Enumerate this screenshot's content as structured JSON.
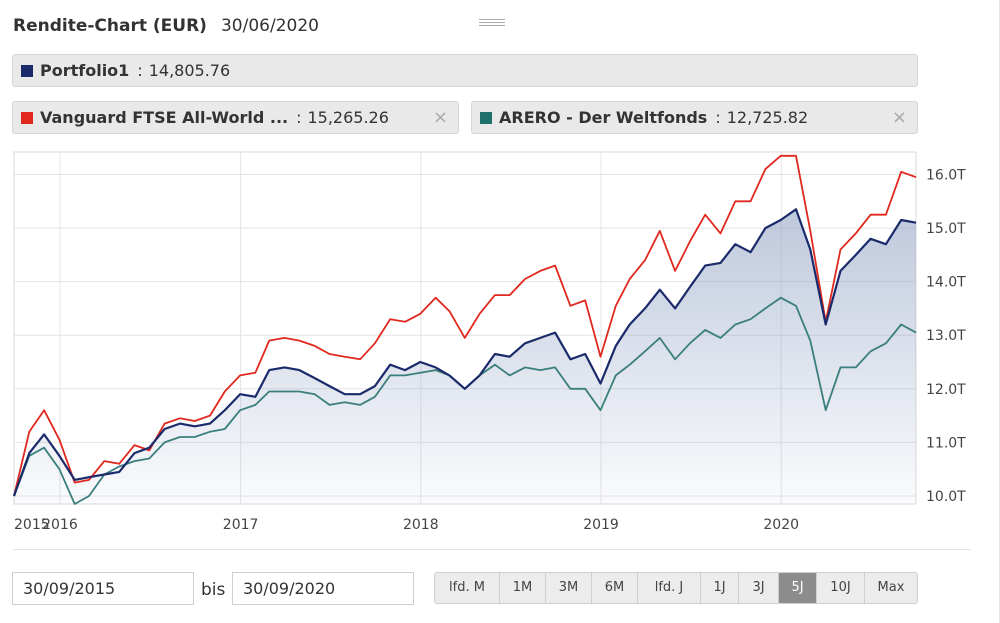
{
  "header": {
    "title": "Rendite-Chart (EUR)",
    "date": "30/06/2020"
  },
  "legend": [
    {
      "name": "Portfolio1",
      "value": "14,805.76",
      "color": "#1a2a6a",
      "closable": false
    },
    {
      "name": "Vanguard FTSE All-World ...",
      "value": "15,265.26",
      "color": "#e0281e",
      "closable": true,
      "close_label": "×"
    },
    {
      "name": "ARERO - Der Weltfonds",
      "value": "12,725.82",
      "color": "#1f6f6c",
      "closable": true,
      "close_label": "×"
    }
  ],
  "chart_data": {
    "type": "line",
    "x_ticks": [
      "2015",
      "2016",
      "2017",
      "2018",
      "2019",
      "2020"
    ],
    "x_tick_dates": [
      "2015-09-30",
      "2016-01-01",
      "2017-01-01",
      "2018-01-01",
      "2019-01-01",
      "2020-01-01"
    ],
    "y_ticks": [
      "10.0T",
      "11.0T",
      "12.0T",
      "13.0T",
      "14.0T",
      "15.0T",
      "16.0T"
    ],
    "y_tick_values": [
      10000,
      11000,
      12000,
      13000,
      14000,
      15000,
      16000
    ],
    "ylim": [
      9850,
      16420
    ],
    "xlim": [
      "2015-09-30",
      "2020-09-30"
    ],
    "grid": true,
    "dates": [
      "2015-09-30",
      "2015-10-31",
      "2015-11-30",
      "2015-12-31",
      "2016-01-31",
      "2016-02-29",
      "2016-03-31",
      "2016-04-30",
      "2016-05-31",
      "2016-06-30",
      "2016-07-31",
      "2016-08-31",
      "2016-09-30",
      "2016-10-31",
      "2016-11-30",
      "2016-12-31",
      "2017-01-31",
      "2017-02-28",
      "2017-03-31",
      "2017-04-30",
      "2017-05-31",
      "2017-06-30",
      "2017-07-31",
      "2017-08-31",
      "2017-09-30",
      "2017-10-31",
      "2017-11-30",
      "2017-12-31",
      "2018-01-31",
      "2018-02-28",
      "2018-03-31",
      "2018-04-30",
      "2018-05-31",
      "2018-06-30",
      "2018-07-31",
      "2018-08-31",
      "2018-09-30",
      "2018-10-31",
      "2018-11-30",
      "2018-12-31",
      "2019-01-31",
      "2019-02-28",
      "2019-03-31",
      "2019-04-30",
      "2019-05-31",
      "2019-06-30",
      "2019-07-31",
      "2019-08-31",
      "2019-09-30",
      "2019-10-31",
      "2019-11-30",
      "2019-12-31",
      "2020-01-31",
      "2020-02-29",
      "2020-03-31",
      "2020-04-30",
      "2020-05-31",
      "2020-06-30",
      "2020-07-31",
      "2020-08-31",
      "2020-09-30"
    ],
    "series": [
      {
        "name": "Vanguard FTSE All-World ...",
        "color": "#e0281e",
        "area": false,
        "values": [
          10000,
          11200,
          11600,
          11050,
          10250,
          10300,
          10650,
          10600,
          10950,
          10850,
          11350,
          11450,
          11400,
          11500,
          11950,
          12250,
          12300,
          12900,
          12950,
          12900,
          12800,
          12650,
          12600,
          12550,
          12850,
          13300,
          13250,
          13400,
          13700,
          13450,
          12950,
          13400,
          13750,
          13750,
          14050,
          14200,
          14300,
          13550,
          13650,
          12600,
          13550,
          14050,
          14400,
          14950,
          14200,
          14750,
          15250,
          14900,
          15500,
          15500,
          16100,
          16350,
          16350,
          14950,
          13250,
          14600,
          14900,
          15250,
          15250,
          16050,
          15950
        ]
      },
      {
        "name": "ARERO - Der Weltfonds",
        "color": "#3a7f7c",
        "area": false,
        "values": [
          10000,
          10750,
          10900,
          10500,
          9850,
          10000,
          10400,
          10550,
          10650,
          10700,
          11000,
          11100,
          11100,
          11200,
          11250,
          11600,
          11700,
          11950,
          11950,
          11950,
          11900,
          11700,
          11750,
          11700,
          11850,
          12250,
          12250,
          12300,
          12350,
          12250,
          12000,
          12250,
          12450,
          12250,
          12400,
          12350,
          12400,
          12000,
          12000,
          11600,
          12250,
          12450,
          12700,
          12950,
          12550,
          12850,
          13100,
          12950,
          13200,
          13300,
          13500,
          13700,
          13550,
          12900,
          11600,
          12400,
          12400,
          12700,
          12850,
          13200,
          13050
        ]
      },
      {
        "name": "Portfolio1",
        "color": "#1a2a6a",
        "area": true,
        "area_color": "#8a9cc0",
        "values": [
          10000,
          10800,
          11150,
          10750,
          10300,
          10350,
          10400,
          10450,
          10800,
          10900,
          11250,
          11350,
          11300,
          11350,
          11600,
          11900,
          11850,
          12350,
          12400,
          12350,
          12200,
          12050,
          11900,
          11900,
          12050,
          12450,
          12350,
          12500,
          12400,
          12250,
          12000,
          12250,
          12650,
          12600,
          12850,
          12950,
          13050,
          12550,
          12650,
          12100,
          12800,
          13200,
          13500,
          13850,
          13500,
          13900,
          14300,
          14350,
          14700,
          14550,
          15000,
          15150,
          15350,
          14600,
          13200,
          14200,
          14500,
          14800,
          14700,
          15150,
          15100
        ]
      }
    ]
  },
  "controls": {
    "from_date": "30/09/2015",
    "bis_label": "bis",
    "to_date": "30/09/2020",
    "ranges": [
      {
        "label": "lfd. M",
        "active": false
      },
      {
        "label": "1M",
        "active": false
      },
      {
        "label": "3M",
        "active": false
      },
      {
        "label": "6M",
        "active": false
      },
      {
        "label": "lfd. J",
        "active": false
      },
      {
        "label": "1J",
        "active": false
      },
      {
        "label": "3J",
        "active": false
      },
      {
        "label": "5J",
        "active": true
      },
      {
        "label": "10J",
        "active": false
      },
      {
        "label": "Max",
        "active": false
      }
    ]
  }
}
